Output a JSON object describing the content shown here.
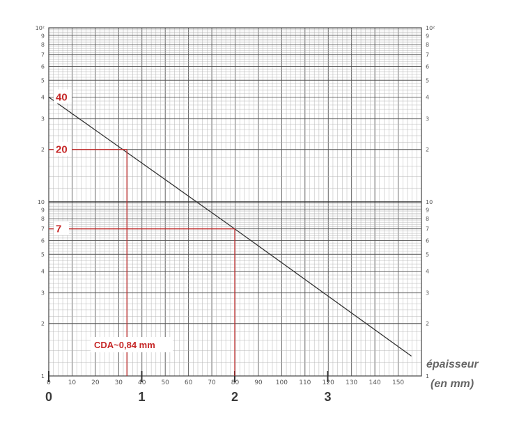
{
  "chart_data": {
    "type": "line",
    "title": "",
    "xlabel_lines": [
      "épaisseur",
      "(en mm)"
    ],
    "ylabel": "",
    "y_scale": "log",
    "ylim": [
      1,
      100
    ],
    "grid": true,
    "paper_x_ticks": [
      "0",
      "10",
      "20",
      "30",
      "40",
      "50",
      "60",
      "70",
      "80",
      "90",
      "100",
      "110",
      "120",
      "130",
      "140",
      "150"
    ],
    "y_decade_labels": {
      "left": [
        "10²",
        "9",
        "8",
        "7",
        "6",
        "5",
        "4",
        "3",
        "2",
        "10",
        "9",
        "8",
        "7",
        "6",
        "5",
        "4",
        "3",
        "2",
        "1"
      ],
      "right": [
        "10²",
        "9",
        "8",
        "7",
        "6",
        "5",
        "4",
        "3",
        "2",
        "10",
        "9",
        "8",
        "7",
        "6",
        "5",
        "4",
        "3",
        "2",
        "1"
      ]
    },
    "mm_ticks": [
      "0",
      "1",
      "2",
      "3"
    ],
    "series": [
      {
        "points": [
          [
            0,
            40
          ],
          [
            2,
            7
          ],
          [
            3.9,
            1.3
          ]
        ],
        "color": "#333333"
      }
    ],
    "annotations": [
      {
        "label": "40",
        "y": 40
      },
      {
        "label": "20",
        "y": 20,
        "x": 0.84
      },
      {
        "label": "7",
        "y": 7,
        "x": 2
      }
    ],
    "result_label": "CDA~0,84 mm",
    "accent_color": "#c62828"
  }
}
